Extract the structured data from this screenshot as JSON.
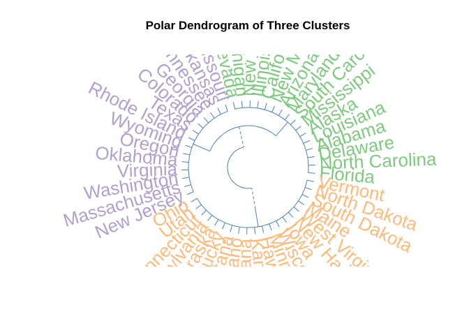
{
  "chart_data": {
    "type": "dendrogram",
    "title": "Polar Dendrogram of Three Clusters",
    "branch_color": "#4a7fb5",
    "clusters": [
      {
        "color": "#7fc97f",
        "leaves": [
          "Florida",
          "North Carolina",
          "Delaware",
          "Alabama",
          "Louisiana",
          "Alaska",
          "Mississippi",
          "South Carolina",
          "Maryland",
          "Arizona",
          "New Mexico",
          "California",
          "Illinois",
          "New York",
          "Michigan",
          "Nevada"
        ]
      },
      {
        "color": "#b09fcf",
        "leaves": [
          "Missouri",
          "Arkansas",
          "Tennessee",
          "Georgia",
          "Colorado",
          "Texas",
          "Rhode Island",
          "Wyoming",
          "Oregon",
          "Oklahoma",
          "Virginia",
          "Washington",
          "Massachusetts",
          "New Jersey"
        ]
      },
      {
        "color": "#fdb97a",
        "leaves": [
          "Ohio",
          "Utah",
          "Connecticut",
          "Pennsylvania",
          "Nebraska",
          "Kentucky",
          "Montana",
          "Idaho",
          "Indiana",
          "Kansas",
          "Hawaii",
          "Minnesota",
          "Wisconsin",
          "Iowa",
          "New Hampshire",
          "West Virginia",
          "Maine",
          "South Dakota",
          "North Dakota",
          "Vermont"
        ]
      }
    ]
  }
}
